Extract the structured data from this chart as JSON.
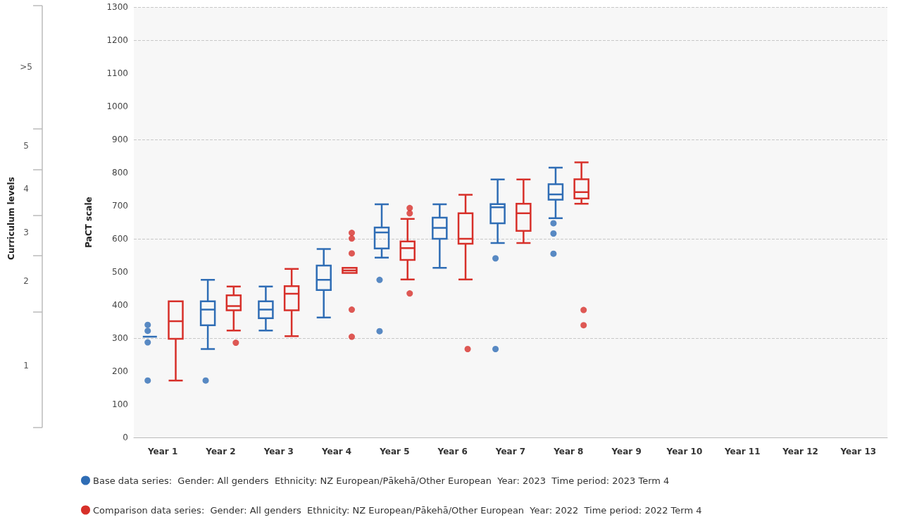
{
  "chart_data": {
    "type": "box",
    "ylabel": "PaCT scale",
    "annotations": [
      "Curriculum levels",
      ">5",
      "5",
      "4",
      "3",
      "2",
      "1"
    ],
    "categories": [
      "Year 1",
      "Year 2",
      "Year 3",
      "Year 4",
      "Year 5",
      "Year 6",
      "Year 7",
      "Year 8",
      "Year 9",
      "Year 10",
      "Year 11",
      "Year 12",
      "Year 13"
    ],
    "ylim": [
      0,
      1300
    ],
    "yticks": [
      0,
      100,
      200,
      300,
      400,
      500,
      600,
      700,
      800,
      900,
      1000,
      1100,
      1200,
      1300
    ],
    "grid": "y",
    "legend": "bottom",
    "series": [
      {
        "name": "Base data series:  Gender: All genders  Ethnicity: NZ European/Pākehā/Other European  Year: 2023  Time period: 2023 Term 4",
        "color": "#2f6db5",
        "boxes": [
          {
            "low": 304,
            "q1": 304,
            "median": 304,
            "q3": 304,
            "high": 304,
            "outliers": [
              172,
              287,
              322,
              340
            ]
          },
          {
            "low": 267,
            "q1": 339,
            "median": 386,
            "q3": 411,
            "high": 476,
            "outliers": [
              172
            ]
          },
          {
            "low": 323,
            "q1": 360,
            "median": 386,
            "q3": 411,
            "high": 456
          },
          {
            "low": 362,
            "q1": 445,
            "median": 476,
            "q3": 519,
            "high": 569
          },
          {
            "low": 543,
            "q1": 571,
            "median": 619,
            "q3": 634,
            "high": 704,
            "outliers": [
              321,
              476
            ]
          },
          {
            "low": 512,
            "q1": 600,
            "median": 633,
            "q3": 664,
            "high": 704
          },
          {
            "low": 587,
            "q1": 647,
            "median": 695,
            "q3": 705,
            "high": 779,
            "outliers": [
              267,
              541
            ]
          },
          {
            "low": 662,
            "q1": 718,
            "median": 734,
            "q3": 765,
            "high": 815,
            "outliers": [
              555,
              616,
              647
            ]
          },
          null,
          null,
          null,
          null,
          null
        ]
      },
      {
        "name": "Comparison data series:  Gender: All genders  Ethnicity: NZ European/Pākehā/Other European  Year: 2022  Time period: 2022 Term 4",
        "color": "#d7302a",
        "boxes": [
          {
            "low": 172,
            "q1": 298,
            "median": 351,
            "q3": 411,
            "high": 411
          },
          {
            "low": 323,
            "q1": 384,
            "median": 397,
            "q3": 429,
            "high": 456,
            "outliers": [
              286
            ]
          },
          {
            "low": 306,
            "q1": 384,
            "median": 434,
            "q3": 457,
            "high": 509
          },
          {
            "low": 497,
            "q1": 497,
            "median": 504,
            "q3": 512,
            "high": 512,
            "outliers": [
              304,
              386,
              556,
              601,
              618
            ]
          },
          {
            "low": 477,
            "q1": 536,
            "median": 572,
            "q3": 592,
            "high": 660,
            "outliers": [
              435,
              677,
              693
            ]
          },
          {
            "low": 477,
            "q1": 585,
            "median": 600,
            "q3": 677,
            "high": 733,
            "outliers": [
              267
            ]
          },
          {
            "low": 587,
            "q1": 624,
            "median": 677,
            "q3": 706,
            "high": 779
          },
          {
            "low": 706,
            "q1": 722,
            "median": 741,
            "q3": 780,
            "high": 831,
            "outliers": [
              339,
              385
            ]
          },
          null,
          null,
          null,
          null,
          null
        ]
      }
    ]
  }
}
